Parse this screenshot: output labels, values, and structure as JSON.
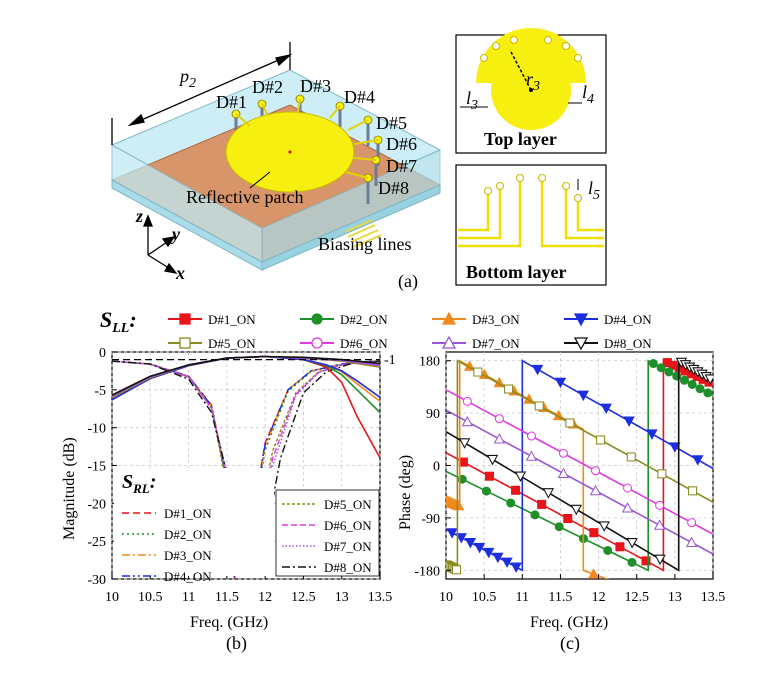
{
  "panel_a": {
    "p2": "p",
    "p2_sub": "2",
    "diode_labels": [
      "D#1",
      "D#2",
      "D#3",
      "D#4",
      "D#5",
      "D#6",
      "D#7",
      "D#8"
    ],
    "reflective_patch": "Reflective patch",
    "biasing_lines": "Biasing lines",
    "axis_z": "z",
    "axis_y": "y",
    "axis_x": "x",
    "caption": "(a)",
    "top_layer": "Top layer",
    "bottom_layer": "Bottom layer",
    "r3": "r",
    "r3_sub": "3",
    "l3": "l",
    "l3_sub": "3",
    "l4": "l",
    "l4_sub": "4",
    "l5": "l",
    "l5_sub": "5",
    "colors": {
      "patch": "#f7ef10",
      "substrate": "#d9956a",
      "box": "#bfe9f3"
    }
  },
  "sll_legend": {
    "title": "S",
    "title_sub": "LL",
    "colon": ":",
    "entries": [
      {
        "name": "D#1_ON",
        "color": "#e8141a",
        "marker": "square-filled"
      },
      {
        "name": "D#2_ON",
        "color": "#1f8f2a",
        "marker": "circle-filled"
      },
      {
        "name": "D#3_ON",
        "color": "#f08a1c",
        "marker": "triangle-filled"
      },
      {
        "name": "D#4_ON",
        "color": "#1c2ee0",
        "marker": "triangle-down-filled"
      },
      {
        "name": "D#5_ON",
        "color": "#8a8a1e",
        "marker": "square-open"
      },
      {
        "name": "D#6_ON",
        "color": "#e03ae0",
        "marker": "circle-open"
      },
      {
        "name": "D#7_ON",
        "color": "#9a55d6",
        "marker": "triangle-open"
      },
      {
        "name": "D#8_ON",
        "color": "#111111",
        "marker": "triangle-down-open"
      }
    ]
  },
  "chart_data": [
    {
      "type": "line",
      "caption": "(b)",
      "xlabel": "Freq. (GHz)",
      "ylabel": "Magnitude (dB)",
      "xlim": [
        10,
        13.5
      ],
      "ylim": [
        -30,
        0
      ],
      "xticks": [
        "10",
        "10.5",
        "11",
        "11.5",
        "12",
        "12.5",
        "13",
        "13.5"
      ],
      "yticks": [
        "0",
        "-5",
        "-10",
        "-15",
        "-20",
        "-25",
        "-30"
      ],
      "right_tick": "-1",
      "grid": true,
      "rl_legend_title": "S",
      "rl_legend_sub": "RL",
      "rl_legend_colon": ":",
      "rl_legend": [
        {
          "name": "D#1_ON",
          "color": "#e8141a",
          "dash": "7,4"
        },
        {
          "name": "D#2_ON",
          "color": "#1f8f2a",
          "dash": "2,3"
        },
        {
          "name": "D#3_ON",
          "color": "#f08a1c",
          "dash": "8,3,2,3"
        },
        {
          "name": "D#4_ON",
          "color": "#1c2ee0",
          "dash": "8,3,2,3,2,3"
        },
        {
          "name": "D#5_ON",
          "color": "#8a8a1e",
          "dash": "3,2"
        },
        {
          "name": "D#6_ON",
          "color": "#e03ae0",
          "dash": "6,3"
        },
        {
          "name": "D#7_ON",
          "color": "#9a55d6",
          "dash": "1.5,2"
        },
        {
          "name": "D#8_ON",
          "color": "#111111",
          "dash": "8,3,2,3"
        }
      ],
      "rl_series": [
        {
          "color": "#e8141a",
          "dash": "7,4",
          "x": [
            10,
            10.5,
            11,
            11.3,
            11.5,
            11.6,
            11.8,
            12,
            12.3,
            12.6,
            13,
            13.3,
            13.5
          ],
          "y": [
            -1.2,
            -1.6,
            -3.2,
            -7,
            -17,
            -30,
            -24,
            -12,
            -5,
            -2.5,
            -1.6,
            -1.3,
            -1.2
          ]
        },
        {
          "color": "#1f8f2a",
          "dash": "2,3",
          "x": [
            10,
            10.5,
            11,
            11.3,
            11.5,
            11.6,
            11.8,
            12,
            12.3,
            12.6,
            13,
            13.3,
            13.5
          ],
          "y": [
            -1.2,
            -1.6,
            -3.3,
            -7.3,
            -18,
            -29,
            -25,
            -13,
            -5.2,
            -2.6,
            -1.6,
            -1.3,
            -1.2
          ]
        },
        {
          "color": "#f08a1c",
          "dash": "8,3,2,3",
          "x": [
            10,
            10.5,
            11,
            11.3,
            11.5,
            11.6,
            11.8,
            12,
            12.3,
            12.6,
            13,
            13.3,
            13.5
          ],
          "y": [
            -1.2,
            -1.6,
            -3.3,
            -7.2,
            -17.5,
            -29.5,
            -24.5,
            -12.5,
            -5,
            -2.5,
            -1.6,
            -1.3,
            -1.2
          ]
        },
        {
          "color": "#1c2ee0",
          "dash": "8,3,2,3,2,3",
          "x": [
            10,
            10.5,
            11,
            11.3,
            11.5,
            11.6,
            11.8,
            12,
            12.3,
            12.6,
            13,
            13.3,
            13.5
          ],
          "y": [
            -1.2,
            -1.6,
            -3.2,
            -7.1,
            -17.2,
            -29.8,
            -24.2,
            -12.2,
            -5,
            -2.5,
            -1.6,
            -1.3,
            -1.2
          ]
        },
        {
          "color": "#8a8a1e",
          "dash": "3,2",
          "x": [
            10,
            10.5,
            11,
            11.3,
            11.5,
            11.65,
            11.9,
            12.1,
            12.4,
            12.7,
            13,
            13.3,
            13.5
          ],
          "y": [
            -1.2,
            -1.6,
            -3.3,
            -7.4,
            -17,
            -28,
            -23,
            -13,
            -5.4,
            -2.6,
            -1.7,
            -1.3,
            -1.2
          ]
        },
        {
          "color": "#e03ae0",
          "dash": "6,3",
          "x": [
            10,
            10.5,
            11,
            11.3,
            11.5,
            11.7,
            11.9,
            12.1,
            12.4,
            12.7,
            13,
            13.3,
            13.5
          ],
          "y": [
            -1.2,
            -1.6,
            -3.3,
            -7.4,
            -16.5,
            -27,
            -24,
            -14,
            -5.6,
            -2.7,
            -1.7,
            -1.3,
            -1.2
          ]
        },
        {
          "color": "#9a55d6",
          "dash": "1.5,2",
          "x": [
            10,
            10.5,
            11,
            11.3,
            11.5,
            11.7,
            11.9,
            12.1,
            12.4,
            12.7,
            13,
            13.3,
            13.5
          ],
          "y": [
            -1.2,
            -1.6,
            -3.3,
            -7.5,
            -16,
            -25,
            -24,
            -15,
            -5.8,
            -2.7,
            -1.7,
            -1.3,
            -1.2
          ]
        },
        {
          "color": "#111111",
          "dash": "8,3,2,3",
          "x": [
            10,
            10.5,
            11,
            11.3,
            11.6,
            11.85,
            12,
            12.2,
            12.5,
            12.8,
            13.1,
            13.3,
            13.5
          ],
          "y": [
            -1.2,
            -1.6,
            -3.6,
            -8,
            -20,
            -28.5,
            -25,
            -14,
            -5.4,
            -2.6,
            -1.6,
            -1.3,
            -1.2
          ]
        }
      ],
      "ll_series": [
        {
          "color": "#e8141a",
          "x": [
            10,
            10.5,
            11,
            11.5,
            12,
            12.5,
            12.8,
            13,
            13.2,
            13.5
          ],
          "y": [
            -6.3,
            -3.5,
            -1.8,
            -0.8,
            -0.6,
            -1,
            -2,
            -4,
            -8.5,
            -14
          ]
        },
        {
          "color": "#1f8f2a",
          "x": [
            10,
            10.5,
            11,
            11.5,
            12,
            12.5,
            12.8,
            13,
            13.2,
            13.5
          ],
          "y": [
            -6.3,
            -3.5,
            -1.8,
            -0.8,
            -0.6,
            -1,
            -1.8,
            -3,
            -5,
            -8
          ]
        },
        {
          "color": "#f08a1c",
          "x": [
            10,
            10.5,
            11,
            11.5,
            12,
            12.5,
            12.8,
            13,
            13.2,
            13.5
          ],
          "y": [
            -6.3,
            -3.5,
            -1.8,
            -0.8,
            -0.6,
            -1,
            -1.7,
            -2.6,
            -4.2,
            -6.5
          ]
        },
        {
          "color": "#1c2ee0",
          "x": [
            10,
            10.5,
            11,
            11.5,
            12,
            12.5,
            12.8,
            13,
            13.2,
            13.5
          ],
          "y": [
            -6.3,
            -3.5,
            -1.8,
            -0.8,
            -0.6,
            -1,
            -1.7,
            -2.5,
            -3.8,
            -6
          ]
        },
        {
          "color": "#8a8a1e",
          "x": [
            10,
            10.5,
            11,
            11.5,
            12,
            12.5,
            13,
            13.5
          ],
          "y": [
            -6,
            -3.4,
            -1.7,
            -0.8,
            -0.6,
            -0.8,
            -1.2,
            -2
          ]
        },
        {
          "color": "#e03ae0",
          "x": [
            10,
            10.5,
            11,
            11.5,
            12,
            12.5,
            13,
            13.5
          ],
          "y": [
            -5.8,
            -3.3,
            -1.7,
            -0.8,
            -0.6,
            -0.8,
            -1.1,
            -1.8
          ]
        },
        {
          "color": "#9a55d6",
          "x": [
            10,
            10.5,
            11,
            11.5,
            12,
            12.5,
            13,
            13.5
          ],
          "y": [
            -5.8,
            -3.3,
            -1.7,
            -0.8,
            -0.6,
            -0.8,
            -1.1,
            -1.7
          ]
        },
        {
          "color": "#111111",
          "x": [
            10,
            10.5,
            11,
            11.5,
            12,
            12.5,
            13,
            13.5
          ],
          "y": [
            -5.7,
            -3.2,
            -1.7,
            -0.8,
            -0.6,
            -0.7,
            -1,
            -1.5
          ]
        }
      ]
    },
    {
      "type": "line",
      "caption": "(c)",
      "xlabel": "Freq. (GHz)",
      "ylabel": "Phase (deg)",
      "xlim": [
        10,
        13.5
      ],
      "ylim": [
        -195,
        195
      ],
      "xticks": [
        "10",
        "10.5",
        "11",
        "11.5",
        "12",
        "12.5",
        "13",
        "13.5"
      ],
      "yticks": [
        "180",
        "90",
        "0",
        "-90",
        "-180"
      ],
      "grid": true,
      "series": [
        {
          "name": "D#1_ON",
          "color": "#e8141a",
          "x": [
            10,
            12.85,
            12.85,
            13.5
          ],
          "y": [
            22,
            -180,
            180,
            140
          ]
        },
        {
          "name": "D#2_ON",
          "color": "#1f8f2a",
          "x": [
            10,
            12.65,
            12.65,
            13.5
          ],
          "y": [
            -10,
            -180,
            180,
            120
          ]
        },
        {
          "name": "D#3_ON",
          "color": "#f08a1c",
          "x": [
            10,
            10.18,
            10.18,
            11.8,
            11.8,
            13.5
          ],
          "y": [
            -60,
            -70,
            180,
            62,
            -180,
            -262
          ]
        },
        {
          "name": "D#4_ON",
          "color": "#1c2ee0",
          "x": [
            10,
            11.0,
            11.0,
            13.5
          ],
          "y": [
            -110,
            -180,
            180,
            -5
          ]
        },
        {
          "name": "D#5_ON",
          "color": "#8a8a1e",
          "x": [
            10,
            10.15,
            10.15,
            13.5
          ],
          "y": [
            -170,
            -180,
            180,
            -63
          ]
        },
        {
          "name": "D#6_ON",
          "color": "#e03ae0",
          "x": [
            10,
            13.5
          ],
          "y": [
            130,
            -118
          ]
        },
        {
          "name": "D#7_ON",
          "color": "#9a55d6",
          "x": [
            10,
            13.5
          ],
          "y": [
            95,
            -152
          ]
        },
        {
          "name": "D#8_ON",
          "color": "#111111",
          "x": [
            10,
            13.05,
            13.05,
            13.5
          ],
          "y": [
            58,
            -180,
            180,
            146
          ]
        }
      ]
    }
  ]
}
